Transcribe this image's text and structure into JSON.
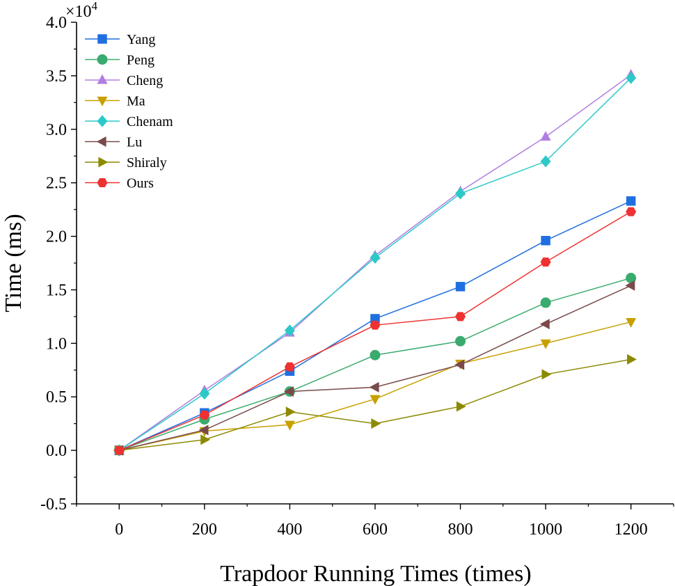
{
  "chart_data": {
    "type": "line",
    "title": "",
    "xlabel": "Trapdoor Running Times (times)",
    "ylabel": "Time (ms)",
    "y_scale_label": "×10",
    "y_scale_exponent": "4",
    "x": [
      0,
      200,
      400,
      600,
      800,
      1000,
      1200
    ],
    "x_ticks": [
      "0",
      "200",
      "400",
      "600",
      "800",
      "1000",
      "1200"
    ],
    "xlim": [
      -100,
      1300
    ],
    "y_ticks": [
      "-0.5",
      "0.0",
      "0.5",
      "1.0",
      "1.5",
      "2.0",
      "2.5",
      "3.0",
      "3.5",
      "4.0"
    ],
    "ylim": [
      -0.5,
      4.0
    ],
    "legend_position": "top-left",
    "series": [
      {
        "name": "Yang",
        "color": "#1f6fe0",
        "marker": "square",
        "values": [
          0.0,
          0.35,
          0.74,
          1.23,
          1.53,
          1.96,
          2.33
        ]
      },
      {
        "name": "Peng",
        "color": "#3aab6e",
        "marker": "circle",
        "values": [
          0.0,
          0.29,
          0.55,
          0.89,
          1.02,
          1.38,
          1.61
        ]
      },
      {
        "name": "Cheng",
        "color": "#b07ee0",
        "marker": "triangle-up",
        "values": [
          0.0,
          0.56,
          1.1,
          1.82,
          2.42,
          2.93,
          3.51
        ]
      },
      {
        "name": "Ma",
        "color": "#c8a000",
        "marker": "triangle-down",
        "values": [
          0.0,
          0.18,
          0.24,
          0.48,
          0.81,
          1.0,
          1.2
        ]
      },
      {
        "name": "Chenam",
        "color": "#2dc8c8",
        "marker": "diamond",
        "values": [
          0.0,
          0.53,
          1.12,
          1.8,
          2.4,
          2.7,
          3.48
        ]
      },
      {
        "name": "Lu",
        "color": "#7a4a4a",
        "marker": "triangle-left",
        "values": [
          0.0,
          0.19,
          0.55,
          0.59,
          0.8,
          1.18,
          1.54
        ]
      },
      {
        "name": "Shiraly",
        "color": "#8c8a00",
        "marker": "triangle-right",
        "values": [
          0.0,
          0.1,
          0.36,
          0.25,
          0.41,
          0.71,
          0.85
        ]
      },
      {
        "name": "Ours",
        "color": "#ee3232",
        "marker": "hexagon",
        "values": [
          0.0,
          0.33,
          0.78,
          1.17,
          1.25,
          1.76,
          2.23
        ]
      }
    ]
  }
}
